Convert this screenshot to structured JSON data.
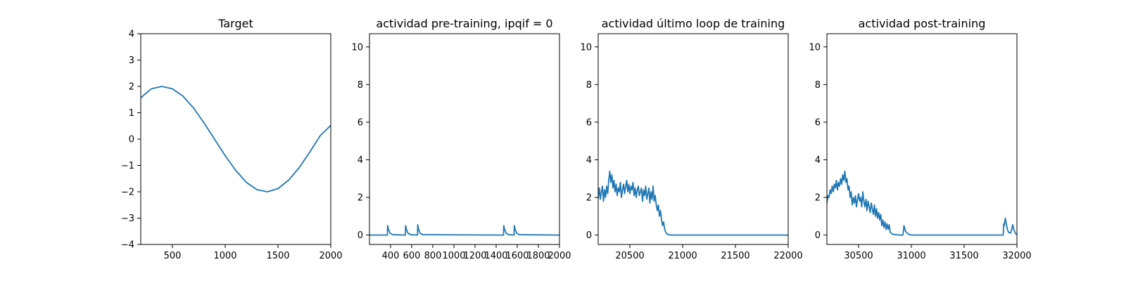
{
  "chart_data": [
    {
      "type": "line",
      "title": "Target",
      "xlim": [
        200,
        2000
      ],
      "ylim": [
        -4,
        4
      ],
      "xticks": [
        500,
        1000,
        1500,
        2000
      ],
      "yticks": [
        -4,
        -3,
        -2,
        -1,
        0,
        1,
        2,
        3,
        4
      ],
      "xtick_labels": [
        "500",
        "1000",
        "1500",
        "2000"
      ],
      "ytick_labels": [
        "−4",
        "−3",
        "−2",
        "−1",
        "0",
        "1",
        "2",
        "3",
        "4"
      ],
      "color": "#1f77b4",
      "series": [
        {
          "x": [
            200,
            300,
            400,
            500,
            600,
            700,
            800,
            900,
            1000,
            1100,
            1200,
            1300,
            1400,
            1500,
            1600,
            1700,
            1800,
            1900,
            2000
          ],
          "y": [
            1.57,
            1.91,
            2.0,
            1.91,
            1.63,
            1.18,
            0.61,
            -0.01,
            -0.63,
            -1.19,
            -1.64,
            -1.92,
            -2.0,
            -1.88,
            -1.56,
            -1.09,
            -0.5,
            0.13,
            0.52
          ]
        }
      ],
      "grid": false
    },
    {
      "type": "line",
      "title": "actividad pre-training, ipqif = 0",
      "xlim": [
        200,
        2000
      ],
      "ylim": [
        -0.5,
        10.7
      ],
      "xticks": [
        400,
        600,
        800,
        1000,
        1200,
        1400,
        1600,
        1800,
        2000
      ],
      "yticks": [
        0,
        2,
        4,
        6,
        8,
        10
      ],
      "xtick_labels": [
        "400",
        "600",
        "800",
        "1000",
        "1200",
        "1400",
        "1600",
        "1800",
        "2000"
      ],
      "ytick_labels": [
        "0",
        "2",
        "4",
        "6",
        "8",
        "10"
      ],
      "color": "#1f77b4",
      "series": [
        {
          "x": [
            200,
            370,
            372,
            380,
            395,
            420,
            540,
            542,
            550,
            565,
            590,
            655,
            657,
            665,
            680,
            705,
            1470,
            1472,
            1480,
            1495,
            1520,
            1570,
            1572,
            1580,
            1595,
            1620,
            2000
          ],
          "y": [
            0,
            0,
            0.5,
            0.3,
            0.1,
            0.02,
            0,
            0.5,
            0.3,
            0.1,
            0.02,
            0,
            0.55,
            0.32,
            0.1,
            0.02,
            0,
            0.5,
            0.3,
            0.1,
            0.02,
            0,
            0.5,
            0.3,
            0.1,
            0.02,
            0
          ]
        }
      ],
      "grid": false
    },
    {
      "type": "line",
      "title": "actividad último loop de training",
      "xlim": [
        20200,
        22000
      ],
      "ylim": [
        -0.5,
        10.7
      ],
      "xticks": [
        20500,
        21000,
        21500,
        22000
      ],
      "yticks": [
        0,
        2,
        4,
        6,
        8,
        10
      ],
      "xtick_labels": [
        "20500",
        "21000",
        "21500",
        "22000"
      ],
      "ytick_labels": [
        "0",
        "2",
        "4",
        "6",
        "8",
        "10"
      ],
      "color": "#1f77b4",
      "series": [
        {
          "x": [
            20200,
            20210,
            20220,
            20230,
            20240,
            20250,
            20260,
            20270,
            20280,
            20290,
            20300,
            20310,
            20320,
            20330,
            20340,
            20350,
            20360,
            20370,
            20380,
            20390,
            20400,
            20410,
            20420,
            20430,
            20440,
            20450,
            20460,
            20470,
            20480,
            20490,
            20500,
            20510,
            20520,
            20530,
            20540,
            20550,
            20560,
            20570,
            20580,
            20590,
            20600,
            20610,
            20620,
            20630,
            20640,
            20650,
            20660,
            20670,
            20680,
            20690,
            20700,
            20710,
            20720,
            20730,
            20740,
            20750,
            20760,
            20770,
            20780,
            20790,
            20800,
            20810,
            20820,
            20830,
            20840,
            20850,
            20860,
            20870,
            20880,
            20890,
            20900,
            20950,
            21000,
            22000
          ],
          "y": [
            2.0,
            2.5,
            1.9,
            2.3,
            2.6,
            1.8,
            2.4,
            2.0,
            2.6,
            2.2,
            2.9,
            3.4,
            2.8,
            3.2,
            2.5,
            2.9,
            2.3,
            2.7,
            2.1,
            2.5,
            2.3,
            2.8,
            2.0,
            2.4,
            2.7,
            2.2,
            2.6,
            2.9,
            2.3,
            2.7,
            2.2,
            2.6,
            2.4,
            2.8,
            2.1,
            2.5,
            2.0,
            2.4,
            2.6,
            2.1,
            2.3,
            2.5,
            1.8,
            2.4,
            2.1,
            2.6,
            1.9,
            2.2,
            2.5,
            1.7,
            2.3,
            1.9,
            2.6,
            1.8,
            2.1,
            1.6,
            1.3,
            1.6,
            1.0,
            1.3,
            0.8,
            0.5,
            0.7,
            0.3,
            0.15,
            0.06,
            0.03,
            0.02,
            0.01,
            0.0,
            0.0,
            0.0,
            0.0,
            0.0
          ]
        }
      ],
      "grid": false
    },
    {
      "type": "line",
      "title": "actividad post-training",
      "xlim": [
        30200,
        32000
      ],
      "ylim": [
        -0.5,
        10.7
      ],
      "xticks": [
        30500,
        31000,
        31500,
        32000
      ],
      "yticks": [
        0,
        2,
        4,
        6,
        8,
        10
      ],
      "xtick_labels": [
        "30500",
        "31000",
        "31500",
        "32000"
      ],
      "ytick_labels": [
        "0",
        "2",
        "4",
        "6",
        "8",
        "10"
      ],
      "color": "#1f77b4",
      "series": [
        {
          "x": [
            30200,
            30210,
            30220,
            30230,
            30240,
            30250,
            30260,
            30270,
            30280,
            30290,
            30300,
            30310,
            30320,
            30330,
            30340,
            30350,
            30360,
            30370,
            30380,
            30390,
            30400,
            30410,
            30420,
            30430,
            30440,
            30450,
            30460,
            30470,
            30480,
            30490,
            30500,
            30510,
            30520,
            30530,
            30540,
            30550,
            30560,
            30570,
            30580,
            30590,
            30600,
            30610,
            30620,
            30630,
            30640,
            30650,
            30660,
            30670,
            30680,
            30690,
            30700,
            30710,
            30720,
            30730,
            30740,
            30750,
            30760,
            30770,
            30780,
            30790,
            30800,
            30820,
            30850,
            30900,
            30920,
            30930,
            30945,
            30970,
            31000,
            31850,
            31870,
            31875,
            31880,
            31890,
            31900,
            31910,
            31920,
            31940,
            31950,
            31960,
            31970,
            31985,
            32000
          ],
          "y": [
            1.7,
            2.1,
            2.0,
            2.4,
            2.2,
            2.6,
            2.3,
            2.7,
            2.5,
            2.9,
            2.4,
            2.8,
            2.6,
            3.0,
            2.7,
            3.2,
            2.9,
            3.4,
            2.8,
            3.0,
            2.4,
            2.6,
            2.0,
            2.3,
            1.6,
            2.0,
            1.7,
            2.1,
            1.5,
            1.9,
            2.2,
            1.8,
            2.0,
            1.5,
            2.3,
            1.8,
            1.5,
            1.9,
            1.3,
            1.8,
            1.5,
            1.2,
            1.7,
            1.4,
            1.1,
            1.6,
            1.0,
            1.4,
            0.9,
            1.2,
            0.8,
            1.1,
            0.5,
            0.8,
            0.4,
            0.7,
            0.3,
            0.6,
            0.3,
            0.55,
            0.15,
            0.05,
            0.02,
            0.0,
            0.0,
            0.5,
            0.2,
            0.05,
            0.0,
            0.0,
            0.0,
            0.6,
            0.5,
            0.9,
            0.6,
            0.3,
            0.15,
            0.1,
            0.3,
            0.55,
            0.3,
            0.1,
            0.0
          ]
        }
      ],
      "grid": false
    }
  ]
}
